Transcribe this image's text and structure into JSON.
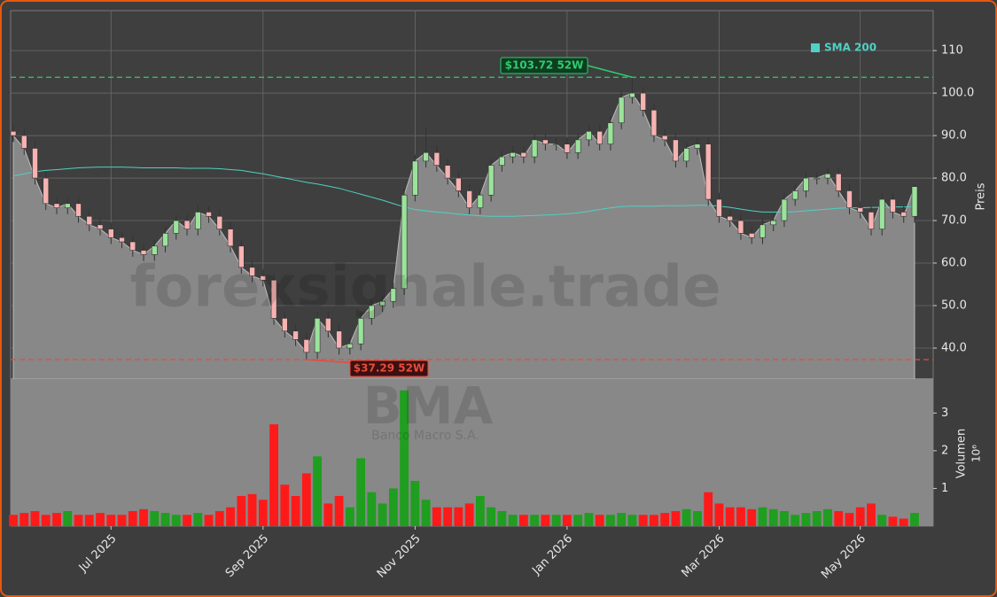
{
  "chart_data": {
    "type": "candlestick",
    "watermark": "forexsignale.trade",
    "symbol": "BMA",
    "company": "Banco Macro S.A.",
    "categories": [
      null,
      null,
      null,
      null,
      null,
      null,
      null,
      null,
      null,
      "Jul 2025",
      null,
      null,
      null,
      null,
      null,
      null,
      null,
      null,
      null,
      null,
      null,
      null,
      null,
      "Sep 2025",
      null,
      null,
      null,
      null,
      null,
      null,
      null,
      null,
      null,
      null,
      null,
      null,
      null,
      "Nov 2025",
      null,
      null,
      null,
      null,
      null,
      null,
      null,
      null,
      null,
      null,
      null,
      null,
      null,
      "Jan 2026",
      null,
      null,
      null,
      null,
      null,
      null,
      null,
      null,
      null,
      null,
      null,
      null,
      null,
      "Mar 2026",
      null,
      null,
      null,
      null,
      null,
      null,
      null,
      null,
      null,
      null,
      null,
      null,
      "May 2026",
      null,
      null,
      null,
      null,
      null
    ],
    "open": [
      91,
      90,
      87,
      80,
      74,
      73,
      74,
      71,
      69,
      68,
      66,
      65,
      63,
      62,
      64,
      67,
      70,
      68,
      72,
      71,
      68,
      64,
      59,
      57,
      56,
      47,
      44,
      42,
      39,
      47,
      44,
      40,
      41,
      47,
      50,
      51,
      54,
      76,
      84,
      86,
      83,
      80,
      77,
      73,
      76,
      83,
      85,
      86,
      85,
      89,
      88,
      88,
      86,
      89,
      91,
      88,
      93,
      99,
      100,
      96,
      90,
      89,
      84,
      87,
      88,
      75,
      71,
      70,
      67,
      66,
      69,
      70,
      75,
      77,
      80,
      80,
      81,
      77,
      73,
      72,
      68,
      75,
      72,
      71
    ],
    "high": [
      92.5,
      91.5,
      88.5,
      81.5,
      75.5,
      75.5,
      75.5,
      72.5,
      70.5,
      69.5,
      67.5,
      66.5,
      64.5,
      65.5,
      68.5,
      71.5,
      71.5,
      73.5,
      73.5,
      72.5,
      69.5,
      65.5,
      60.5,
      58.5,
      57.5,
      48.5,
      45.5,
      43.5,
      48.5,
      48.5,
      45.5,
      42.5,
      48.5,
      51.5,
      52.5,
      55.5,
      77.5,
      85.5,
      92,
      87.5,
      84.5,
      81.5,
      78.5,
      77.5,
      84.5,
      86.5,
      87.5,
      87.5,
      90.5,
      90.5,
      89.5,
      89.5,
      90.5,
      92.5,
      92.5,
      94.5,
      100.5,
      103.72,
      101.5,
      97.5,
      91.5,
      90.5,
      88.5,
      89.5,
      89.5,
      76.5,
      72.5,
      71.5,
      68.5,
      70.5,
      71.5,
      76.5,
      78.5,
      81.5,
      81.5,
      82.5,
      82.5,
      78.5,
      74.5,
      73.5,
      76.5,
      76.5,
      73.5,
      78.5
    ],
    "low": [
      88.5,
      85.5,
      78.5,
      72.5,
      71.5,
      71.5,
      69.5,
      67.5,
      66.5,
      64.5,
      63.5,
      61.5,
      60.5,
      60.5,
      62.5,
      65.5,
      66.5,
      66.5,
      69.5,
      66.5,
      62.5,
      57.5,
      55.5,
      54.5,
      45.5,
      42.5,
      40.5,
      37.29,
      37.5,
      42.5,
      38.5,
      38.5,
      39.5,
      45.5,
      48.5,
      49.5,
      52.5,
      74.5,
      82.5,
      81.5,
      78.5,
      75.5,
      71.5,
      71.5,
      74.5,
      81.5,
      83.5,
      83.5,
      83.5,
      86.5,
      86.5,
      84.5,
      84.5,
      87.5,
      86.5,
      86.5,
      91.5,
      97.5,
      94.5,
      88.5,
      87.5,
      82.5,
      82.5,
      85.5,
      73.5,
      69.5,
      68.5,
      65.5,
      64.5,
      64.5,
      67.5,
      68.5,
      73.5,
      75.5,
      78.5,
      78.5,
      75.5,
      71.5,
      70.5,
      66.5,
      66.5,
      70.5,
      69.5,
      69.5
    ],
    "close": [
      90,
      87,
      80,
      74,
      73,
      74,
      71,
      69,
      68,
      66,
      65,
      63,
      62,
      64,
      67,
      70,
      68,
      72,
      71,
      68,
      64,
      59,
      57,
      56,
      47,
      44,
      42,
      39,
      47,
      44,
      40,
      41,
      47,
      50,
      51,
      54,
      76,
      84,
      86,
      83,
      80,
      77,
      73,
      76,
      83,
      85,
      86,
      85,
      89,
      88,
      88,
      86,
      89,
      91,
      88,
      93,
      99,
      100,
      96,
      90,
      89,
      84,
      87,
      88,
      75,
      71,
      70,
      67,
      66,
      69,
      70,
      75,
      77,
      80,
      80,
      81,
      77,
      73,
      72,
      68,
      75,
      72,
      71,
      78
    ],
    "up_color": "#1f9e1f",
    "down_color": "#ff1a1a",
    "area_color": "#888888",
    "ylabel": "Preis",
    "ylim": [
      32.7,
      119.4
    ],
    "yticks": [
      {
        "value": 40,
        "label": "40.0"
      },
      {
        "value": 50,
        "label": "50.0"
      },
      {
        "value": 60,
        "label": "60.0"
      },
      {
        "value": 70,
        "label": "70.0"
      },
      {
        "value": 80,
        "label": "80.0"
      },
      {
        "value": 90,
        "label": "90.0"
      },
      {
        "value": 100,
        "label": "100.0"
      },
      {
        "value": 110,
        "label": "110"
      }
    ],
    "grid": true,
    "sma": {
      "name": "SMA 200",
      "color": "#4fd1c5",
      "values": [
        80.5,
        81,
        81.5,
        81.8,
        82,
        82.2,
        82.4,
        82.5,
        82.6,
        82.6,
        82.6,
        82.5,
        82.4,
        82.4,
        82.4,
        82.4,
        82.3,
        82.3,
        82.3,
        82.2,
        82,
        81.8,
        81.4,
        81,
        80.5,
        80,
        79.5,
        79,
        78.6,
        78.1,
        77.6,
        76.9,
        76.2,
        75.5,
        74.8,
        74,
        73.2,
        72.6,
        72.3,
        72,
        71.8,
        71.5,
        71.3,
        71.1,
        71,
        71,
        71,
        71.1,
        71.2,
        71.3,
        71.4,
        71.6,
        71.8,
        72.2,
        72.6,
        73,
        73.3,
        73.4,
        73.4,
        73.4,
        73.5,
        73.5,
        73.5,
        73.6,
        73.6,
        73.4,
        73.1,
        72.7,
        72.3,
        72,
        72,
        72,
        72.1,
        72.3,
        72.5,
        72.7,
        72.9,
        73,
        73,
        73.1,
        73.1,
        73.2,
        73.2,
        73.3
      ]
    },
    "high_52w": {
      "value": 103.72,
      "label": "$103.72 52W",
      "color": "#2ecc71"
    },
    "low_52w": {
      "value": 37.29,
      "label": "$37.29 52W",
      "color": "#e74c3c"
    },
    "volume": {
      "ylabel": "Volumen",
      "unit": "10⁶",
      "ylim": [
        0,
        3.9
      ],
      "yticks": [
        1,
        2,
        3
      ],
      "values": [
        0.3,
        0.35,
        0.4,
        0.3,
        0.35,
        0.4,
        0.3,
        0.3,
        0.35,
        0.3,
        0.3,
        0.4,
        0.45,
        0.4,
        0.35,
        0.3,
        0.3,
        0.35,
        0.3,
        0.4,
        0.5,
        0.8,
        0.85,
        0.7,
        2.7,
        1.1,
        0.8,
        1.4,
        1.85,
        0.6,
        0.8,
        0.5,
        1.8,
        0.9,
        0.6,
        1.0,
        3.6,
        1.2,
        0.7,
        0.5,
        0.5,
        0.5,
        0.6,
        0.8,
        0.5,
        0.4,
        0.3,
        0.3,
        0.3,
        0.3,
        0.3,
        0.3,
        0.3,
        0.35,
        0.3,
        0.3,
        0.35,
        0.3,
        0.3,
        0.3,
        0.35,
        0.4,
        0.45,
        0.4,
        0.9,
        0.6,
        0.5,
        0.5,
        0.45,
        0.5,
        0.45,
        0.4,
        0.3,
        0.35,
        0.4,
        0.45,
        0.4,
        0.35,
        0.5,
        0.6,
        0.3,
        0.25,
        0.2,
        0.35
      ]
    }
  }
}
